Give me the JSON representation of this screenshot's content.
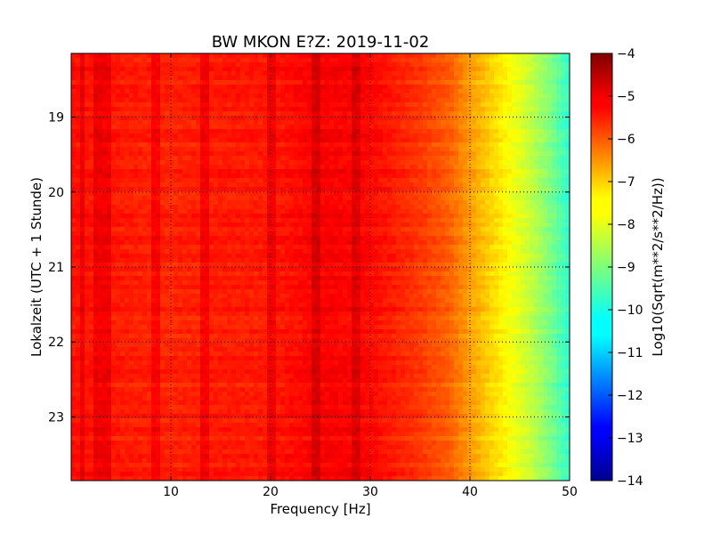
{
  "chart_data": {
    "type": "heatmap",
    "title": "BW MKON E?Z: 2019-11-02",
    "xlabel": "Frequency [Hz]",
    "ylabel": "Lokalzeit (UTC + 1 Stunde)",
    "xlim": [
      0,
      50
    ],
    "ylim": [
      18.15,
      23.85
    ],
    "y_inverted": true,
    "x_ticks": [
      10,
      20,
      30,
      40,
      50
    ],
    "x_tick_labels": [
      "10",
      "20",
      "30",
      "40",
      "50"
    ],
    "y_ticks": [
      19,
      20,
      21,
      22,
      23
    ],
    "y_tick_labels": [
      "19",
      "20",
      "21",
      "22",
      "23"
    ],
    "grid": true,
    "colormap": "jet",
    "colorbar": {
      "label": "Log10(Sqrt(m**2/s**2/Hz))",
      "range": [
        -14,
        -4
      ],
      "ticks": [
        -4,
        -5,
        -6,
        -7,
        -8,
        -9,
        -10,
        -11,
        -12,
        -13,
        -14
      ],
      "tick_labels": [
        "−4",
        "−5",
        "−6",
        "−7",
        "−8",
        "−9",
        "−10",
        "−11",
        "−12",
        "−13",
        "−14"
      ]
    },
    "spectrum_profile": {
      "frequency_hz": [
        0,
        5,
        10,
        15,
        20,
        25,
        30,
        35,
        38,
        40,
        42,
        44,
        46,
        48,
        50
      ],
      "log10_amplitude": [
        -5.4,
        -5.5,
        -5.6,
        -5.5,
        -5.5,
        -5.2,
        -5.3,
        -5.8,
        -6.2,
        -6.8,
        -7.3,
        -7.8,
        -8.3,
        -9.0,
        -9.8
      ]
    },
    "peak_lines_hz": [
      1.2,
      2.6,
      3.5,
      8.6,
      13.5,
      20.2,
      24.5,
      28.6
    ]
  }
}
